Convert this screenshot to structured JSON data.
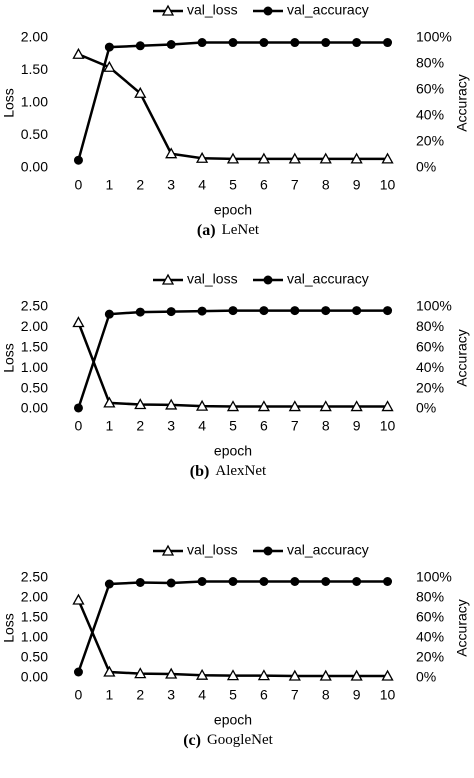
{
  "chart_data": [
    {
      "type": "line",
      "x": [
        0,
        1,
        2,
        3,
        4,
        5,
        6,
        7,
        8,
        9,
        10
      ],
      "xlim": [
        -0.5,
        10.5
      ],
      "xticks": [
        0,
        1,
        2,
        3,
        4,
        5,
        6,
        7,
        8,
        9,
        10
      ],
      "xlabel": "epoch",
      "ylabel": "Loss",
      "y2label": "Accuracy",
      "ylim": [
        0,
        2
      ],
      "yticks": [
        {
          "value": 0,
          "label": "0.00"
        },
        {
          "value": 0.5,
          "label": "0.50"
        },
        {
          "value": 1,
          "label": "1.00"
        },
        {
          "value": 1.5,
          "label": "1.50"
        },
        {
          "value": 2,
          "label": "2.00"
        }
      ],
      "y2lim": [
        0,
        100
      ],
      "y2ticks": [
        {
          "value": 0,
          "label": "0%"
        },
        {
          "value": 20,
          "label": "20%"
        },
        {
          "value": 40,
          "label": "40%"
        },
        {
          "value": 60,
          "label": "60%"
        },
        {
          "value": 80,
          "label": "80%"
        },
        {
          "value": 100,
          "label": "100%"
        }
      ],
      "series": [
        {
          "name": "val_loss",
          "color": "#000000",
          "marker": "triangle",
          "values": [
            1.75,
            1.55,
            1.15,
            0.22,
            0.15,
            0.14,
            0.14,
            0.14,
            0.14,
            0.14,
            0.14
          ]
        },
        {
          "name": "val_accuracy",
          "color": "#000000",
          "marker": "circle",
          "axis": "y2",
          "values": [
            6,
            93,
            94,
            95,
            96.5,
            96.5,
            96.5,
            96.5,
            96.5,
            96.5,
            96.5
          ]
        }
      ],
      "caption": {
        "label": "(a)",
        "text": "LeNet"
      }
    },
    {
      "type": "line",
      "x": [
        0,
        1,
        2,
        3,
        4,
        5,
        6,
        7,
        8,
        9,
        10
      ],
      "xlim": [
        -0.5,
        10.5
      ],
      "xticks": [
        0,
        1,
        2,
        3,
        4,
        5,
        6,
        7,
        8,
        9,
        10
      ],
      "xlabel": "epoch",
      "ylabel": "Loss",
      "y2label": "Accuracy",
      "ylim": [
        0,
        2.5
      ],
      "yticks": [
        {
          "value": 0,
          "label": "0.00"
        },
        {
          "value": 0.5,
          "label": "0.50"
        },
        {
          "value": 1,
          "label": "1.00"
        },
        {
          "value": 1.5,
          "label": "1.50"
        },
        {
          "value": 2,
          "label": "2.00"
        },
        {
          "value": 2.5,
          "label": "2.50"
        }
      ],
      "y2lim": [
        0,
        100
      ],
      "y2ticks": [
        {
          "value": 0,
          "label": "0%"
        },
        {
          "value": 20,
          "label": "20%"
        },
        {
          "value": 40,
          "label": "40%"
        },
        {
          "value": 60,
          "label": "60%"
        },
        {
          "value": 80,
          "label": "80%"
        },
        {
          "value": 100,
          "label": "100%"
        }
      ],
      "series": [
        {
          "name": "val_loss",
          "color": "#000000",
          "marker": "triangle",
          "values": [
            2.12,
            0.15,
            0.11,
            0.1,
            0.07,
            0.06,
            0.06,
            0.06,
            0.06,
            0.06,
            0.06
          ]
        },
        {
          "name": "val_accuracy",
          "color": "#000000",
          "marker": "circle",
          "axis": "y2",
          "values": [
            1,
            93,
            95,
            95.5,
            96,
            96.5,
            96.5,
            96.5,
            96.5,
            96.5,
            96.5
          ]
        }
      ],
      "caption": {
        "label": "(b)",
        "text": "AlexNet"
      }
    },
    {
      "type": "line",
      "x": [
        0,
        1,
        2,
        3,
        4,
        5,
        6,
        7,
        8,
        9,
        10
      ],
      "xlim": [
        -0.5,
        10.5
      ],
      "xticks": [
        0,
        1,
        2,
        3,
        4,
        5,
        6,
        7,
        8,
        9,
        10
      ],
      "xlabel": "epoch",
      "ylabel": "Loss",
      "y2label": "Accuracy",
      "ylim": [
        0,
        2.5
      ],
      "yticks": [
        {
          "value": 0,
          "label": "0.00"
        },
        {
          "value": 0.5,
          "label": "0.50"
        },
        {
          "value": 1,
          "label": "1.00"
        },
        {
          "value": 1.5,
          "label": "1.50"
        },
        {
          "value": 2,
          "label": "2.00"
        },
        {
          "value": 2.5,
          "label": "2.50"
        }
      ],
      "y2lim": [
        0,
        100
      ],
      "y2ticks": [
        {
          "value": 0,
          "label": "0%"
        },
        {
          "value": 20,
          "label": "20%"
        },
        {
          "value": 40,
          "label": "40%"
        },
        {
          "value": 60,
          "label": "60%"
        },
        {
          "value": 80,
          "label": "80%"
        },
        {
          "value": 100,
          "label": "100%"
        }
      ],
      "series": [
        {
          "name": "val_loss",
          "color": "#000000",
          "marker": "triangle",
          "values": [
            1.95,
            0.15,
            0.11,
            0.1,
            0.07,
            0.06,
            0.06,
            0.05,
            0.05,
            0.05,
            0.05
          ]
        },
        {
          "name": "val_accuracy",
          "color": "#000000",
          "marker": "circle",
          "axis": "y2",
          "values": [
            6,
            94,
            95.5,
            95,
            96.5,
            96.5,
            96.5,
            96.5,
            96.5,
            96.5,
            96.5
          ]
        }
      ],
      "caption": {
        "label": "(c)",
        "text": "GoogleNet"
      }
    }
  ]
}
